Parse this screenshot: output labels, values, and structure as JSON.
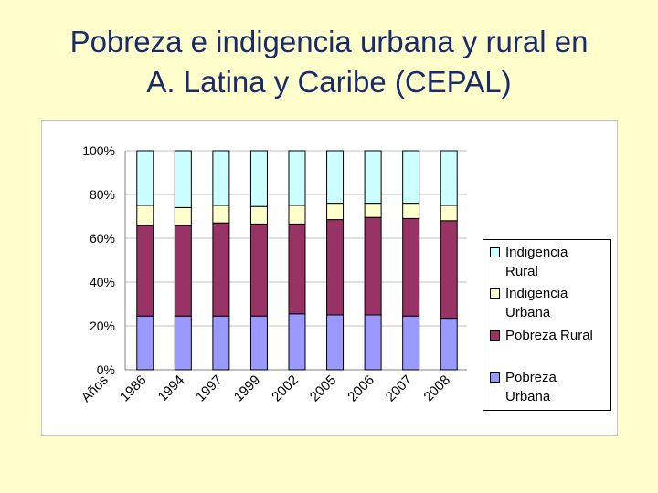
{
  "slide": {
    "title_line1": "Pobreza e indigencia urbana y rural en",
    "title_line2": "A. Latina y Caribe (CEPAL)"
  },
  "chart_data": {
    "type": "bar",
    "stacked": true,
    "percent": true,
    "title": "",
    "xlabel": "Años",
    "ylabel": "",
    "ylim": [
      0,
      100
    ],
    "yticks": [
      "0%",
      "20%",
      "40%",
      "60%",
      "80%",
      "100%"
    ],
    "categories": [
      "1986",
      "1994",
      "1997",
      "1999",
      "2002",
      "2005",
      "2006",
      "2007",
      "2008"
    ],
    "series": [
      {
        "name": "Pobreza Urbana",
        "color": "#9999ff",
        "values": [
          24.5,
          24.5,
          24.5,
          24.5,
          25.5,
          25,
          25,
          24.5,
          23.5
        ]
      },
      {
        "name": "Pobreza Rural",
        "color": "#993366",
        "values": [
          41.5,
          41.5,
          42.5,
          42,
          41,
          43.5,
          44.5,
          44.5,
          44.5
        ]
      },
      {
        "name": "Indigencia Urbana",
        "color": "#ffffcc",
        "values": [
          9,
          8,
          8,
          8,
          8.5,
          7.5,
          6.5,
          7,
          7
        ]
      },
      {
        "name": "Indigencia Rural",
        "color": "#ccffff",
        "values": [
          25,
          26,
          25,
          25.5,
          25,
          24,
          24,
          24,
          25
        ]
      }
    ],
    "legend": {
      "position": "right",
      "entries": [
        {
          "line1": "Indigencia",
          "line2": "Rural",
          "color": "#ccffff"
        },
        {
          "line1": "Indigencia",
          "line2": "Urbana",
          "color": "#ffffcc"
        },
        {
          "line1": "Pobreza Rural",
          "line2": "",
          "color": "#993366"
        },
        {
          "line1": "Pobreza",
          "line2": "Urbana",
          "color": "#9999ff"
        }
      ]
    },
    "grid": true
  }
}
